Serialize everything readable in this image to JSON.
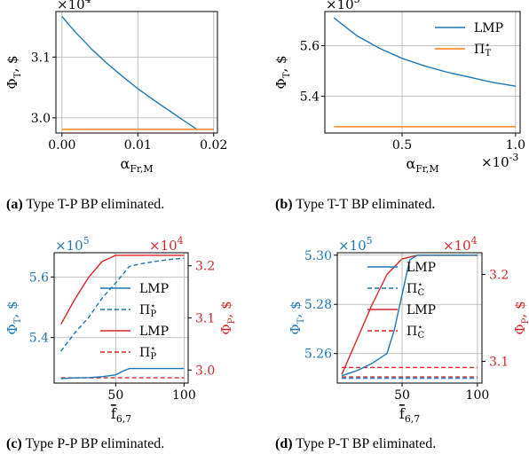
{
  "captions": {
    "a": {
      "tag": "(a)",
      "text": "Type T-P BP eliminated."
    },
    "b": {
      "tag": "(b)",
      "text": "Type T-T BP eliminated."
    },
    "c": {
      "tag": "(c)",
      "text": "Type P-P BP eliminated."
    },
    "d": {
      "tag": "(d)",
      "text": "Type P-T BP eliminated."
    }
  },
  "colors": {
    "blue": "#1f77b4",
    "orange": "#ff7f0e",
    "red": "#d62728"
  },
  "chart_data": [
    {
      "id": "a",
      "type": "line",
      "xlabel": "α",
      "xlabel_sub": "Fr,M",
      "ylabel": "Φ",
      "ylabel_sub": "T",
      "ylabel_unit": ", $",
      "y_multiplier": "×10^4",
      "xlim": [
        -0.0008,
        0.0205
      ],
      "ylim": [
        2.975,
        3.175
      ],
      "xticks": [
        "0.00",
        "0.01",
        "0.02"
      ],
      "xtick_values": [
        0,
        0.01,
        0.02
      ],
      "yticks": [
        "3.0",
        "3.1"
      ],
      "ytick_values": [
        3.0,
        3.1
      ],
      "series": [
        {
          "color": "blue",
          "dash": false,
          "x": [
            0,
            0.001,
            0.002,
            0.003,
            0.004,
            0.006,
            0.008,
            0.01,
            0.012,
            0.014,
            0.016,
            0.0178
          ],
          "y": [
            3.167,
            3.152,
            3.138,
            3.125,
            3.112,
            3.089,
            3.068,
            3.048,
            3.03,
            3.013,
            2.996,
            2.981
          ]
        },
        {
          "color": "orange",
          "dash": false,
          "x": [
            0,
            0.02
          ],
          "y": [
            2.981,
            2.981
          ]
        }
      ]
    },
    {
      "id": "b",
      "type": "line",
      "xlabel": "α",
      "xlabel_sub": "Fr,M",
      "ylabel": "Φ",
      "ylabel_sub": "T",
      "ylabel_unit": ", $",
      "y_multiplier": "×10^5",
      "x_multiplier": "×10^-3",
      "xlim": [
        0.16,
        1.02
      ],
      "ylim": [
        5.255,
        5.735
      ],
      "xticks": [
        "0.5",
        "1.0"
      ],
      "xtick_values": [
        0.5,
        1.0
      ],
      "yticks": [
        "5.4",
        "5.6"
      ],
      "ytick_values": [
        5.4,
        5.6
      ],
      "legend": {
        "position": "upper-right",
        "entries": [
          {
            "label": "LMP",
            "color": "blue",
            "dash": false
          },
          {
            "label": "Π",
            "sup": "⋆",
            "sub": "T",
            "color": "orange",
            "dash": false
          }
        ]
      },
      "series": [
        {
          "color": "blue",
          "dash": false,
          "x": [
            0.2,
            0.3,
            0.4,
            0.5,
            0.6,
            0.7,
            0.8,
            0.9,
            1.0
          ],
          "y": [
            5.71,
            5.64,
            5.59,
            5.55,
            5.52,
            5.495,
            5.475,
            5.455,
            5.44
          ]
        },
        {
          "color": "orange",
          "dash": false,
          "x": [
            0.2,
            1.0
          ],
          "y": [
            5.28,
            5.28
          ]
        }
      ]
    },
    {
      "id": "c",
      "type": "line",
      "xlabel": "f",
      "xlabel_sub": "6,7",
      "xlabel_bar": true,
      "ylabel": "Φ",
      "ylabel_sub": "T",
      "ylabel_unit": ", $",
      "y2label": "Φ",
      "y2label_sub": "P",
      "y2label_unit": ", $",
      "y_multiplier": "×10^5",
      "y2_multiplier": "×10^4",
      "xlim": [
        5,
        103
      ],
      "ylim": [
        5.25,
        5.68
      ],
      "y2lim": [
        2.975,
        3.225
      ],
      "xticks": [
        "50",
        "100"
      ],
      "xtick_values": [
        50,
        100
      ],
      "yticks": [
        "5.4",
        "5.6"
      ],
      "ytick_values": [
        5.4,
        5.6
      ],
      "y2ticks": [
        "3.0",
        "3.1",
        "3.2"
      ],
      "y2tick_values": [
        3.0,
        3.1,
        3.2
      ],
      "legend": {
        "position": "center-right",
        "entries": [
          {
            "label": "LMP",
            "color": "blue",
            "dash": false
          },
          {
            "label": "Π",
            "sup": "⋆",
            "sub": "P",
            "color": "blue",
            "dash": true
          },
          {
            "label": "LMP",
            "color": "red",
            "dash": false
          },
          {
            "label": "Π",
            "sup": "⋆",
            "sub": "P",
            "color": "red",
            "dash": true
          }
        ]
      },
      "series": [
        {
          "color": "red",
          "dash": false,
          "axis": "right",
          "x": [
            10,
            20,
            30,
            40,
            50,
            60,
            70,
            80,
            90,
            100
          ],
          "y": [
            3.088,
            3.135,
            3.177,
            3.208,
            3.22,
            3.22,
            3.22,
            3.22,
            3.22,
            3.22
          ]
        },
        {
          "color": "red",
          "dash": true,
          "axis": "right",
          "x": [
            10,
            100
          ],
          "y": [
            2.985,
            2.985
          ]
        },
        {
          "color": "blue",
          "dash": false,
          "axis": "left",
          "x": [
            10,
            20,
            30,
            40,
            50,
            55,
            60,
            70,
            80,
            90,
            100
          ],
          "y": [
            5.265,
            5.267,
            5.268,
            5.271,
            5.277,
            5.289,
            5.298,
            5.298,
            5.298,
            5.298,
            5.298
          ]
        },
        {
          "color": "blue",
          "dash": true,
          "axis": "left",
          "x": [
            10,
            20,
            30,
            40,
            50,
            60,
            70,
            80,
            90,
            100
          ],
          "y": [
            5.355,
            5.415,
            5.465,
            5.53,
            5.58,
            5.635,
            5.645,
            5.652,
            5.658,
            5.662
          ]
        }
      ]
    },
    {
      "id": "d",
      "type": "line",
      "xlabel": "f",
      "xlabel_sub": "6,7",
      "xlabel_bar": true,
      "ylabel": "Φ",
      "ylabel_sub": "T",
      "ylabel_unit": ", $",
      "y2label": "Φ",
      "y2label_sub": "P",
      "y2label_unit": ", $",
      "y_multiplier": "×10^5",
      "y2_multiplier": "×10^4",
      "xlim": [
        7,
        103
      ],
      "ylim": [
        5.248,
        5.301
      ],
      "y2lim": [
        3.075,
        3.225
      ],
      "xticks": [
        "50",
        "100"
      ],
      "xtick_values": [
        50,
        100
      ],
      "yticks": [
        "5.26",
        "5.28",
        "5.30"
      ],
      "ytick_values": [
        5.26,
        5.28,
        5.3
      ],
      "y2ticks": [
        "3.1",
        "3.2"
      ],
      "y2tick_values": [
        3.1,
        3.2
      ],
      "legend": {
        "position": "upper-center",
        "entries": [
          {
            "label": "LMP",
            "color": "blue",
            "dash": false
          },
          {
            "label": "Π",
            "sup": "⋆",
            "sub": "C",
            "color": "blue",
            "dash": true
          },
          {
            "label": "LMP",
            "color": "red",
            "dash": false
          },
          {
            "label": "Π",
            "sup": "⋆",
            "sub": "C",
            "color": "red",
            "dash": true
          }
        ]
      },
      "series": [
        {
          "color": "red",
          "dash": false,
          "axis": "right",
          "x": [
            10,
            20,
            30,
            40,
            50,
            60,
            70,
            80,
            90,
            100
          ],
          "y": [
            3.085,
            3.125,
            3.165,
            3.2,
            3.218,
            3.222,
            3.222,
            3.222,
            3.222,
            3.222
          ]
        },
        {
          "color": "red",
          "dash": true,
          "axis": "right",
          "x": [
            10,
            100
          ],
          "y": [
            3.093,
            3.093
          ]
        },
        {
          "color": "red",
          "dash": true,
          "axis": "right",
          "x": [
            10,
            100
          ],
          "y": [
            3.082,
            3.082
          ]
        },
        {
          "color": "blue",
          "dash": false,
          "axis": "left",
          "x": [
            10,
            20,
            30,
            40,
            45,
            50,
            55,
            60,
            70,
            80,
            90,
            100
          ],
          "y": [
            5.251,
            5.253,
            5.256,
            5.26,
            5.27,
            5.284,
            5.298,
            5.3,
            5.3,
            5.3,
            5.3,
            5.3
          ]
        },
        {
          "color": "blue",
          "dash": true,
          "axis": "left",
          "x": [
            10,
            100
          ],
          "y": [
            5.25,
            5.25
          ]
        }
      ]
    }
  ]
}
